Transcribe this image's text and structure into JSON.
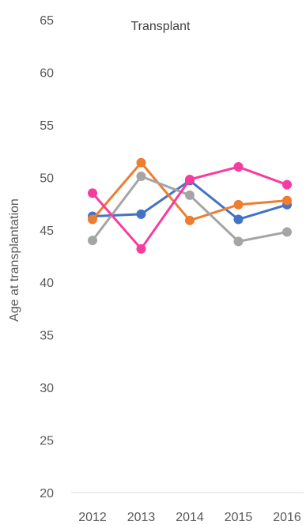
{
  "chart_data": {
    "type": "line",
    "title": "Transplant",
    "xlabel": "",
    "ylabel": "Age at transplantation",
    "categories": [
      "2012",
      "2013",
      "2014",
      "2015",
      "2016"
    ],
    "ylim": [
      20,
      65
    ],
    "yticks": [
      20,
      25,
      30,
      35,
      40,
      45,
      50,
      55,
      60,
      65
    ],
    "ytick_labels": [
      "20",
      "25",
      "30",
      "35",
      "40",
      "45",
      "50",
      "55",
      "60",
      "65"
    ],
    "grid": false,
    "legend": "none",
    "series": [
      {
        "color": "#4472c4",
        "values": [
          46.3,
          46.5,
          49.7,
          46.0,
          47.4
        ]
      },
      {
        "color": "#ed7d31",
        "values": [
          46.0,
          51.4,
          45.9,
          47.4,
          47.8
        ]
      },
      {
        "color": "#a5a5a5",
        "values": [
          44.0,
          50.1,
          48.3,
          43.9,
          44.8
        ]
      },
      {
        "color": "#f73ca0",
        "values": [
          48.5,
          43.2,
          49.8,
          51.0,
          49.3
        ]
      }
    ]
  }
}
